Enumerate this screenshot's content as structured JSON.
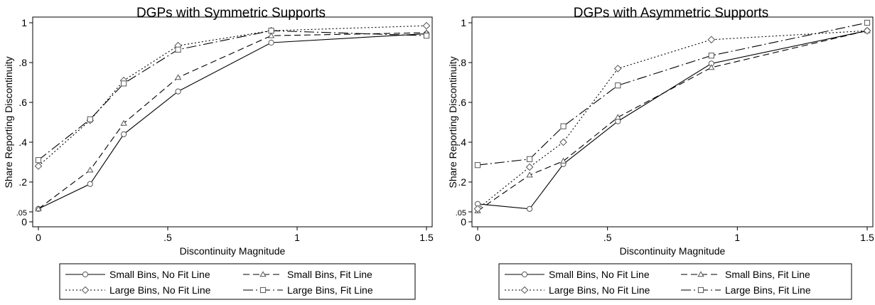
{
  "chart_data": [
    {
      "type": "line",
      "title": "DGPs with Symmetric Supports",
      "xlabel": "Discontinuity Magnitude",
      "ylabel": "Share Reporting Discontinuity",
      "xlim": [
        0,
        1.5
      ],
      "ylim": [
        0,
        1
      ],
      "xticks": [
        0,
        0.5,
        1,
        1.5
      ],
      "xtick_labels": [
        "0",
        ".5",
        "1",
        "1.5"
      ],
      "yticks": [
        0,
        0.05,
        0.2,
        0.4,
        0.6,
        0.8,
        1
      ],
      "ytick_labels": [
        "0",
        ".05",
        ".2",
        ".4",
        ".6",
        ".8",
        "1"
      ],
      "grid": false,
      "legend_position": "bottom",
      "x": [
        0,
        0.2,
        0.33,
        0.54,
        0.9,
        1.5
      ],
      "series": [
        {
          "name": "Small Bins, No Fit Line",
          "values": [
            0.065,
            0.19,
            0.44,
            0.655,
            0.9,
            0.945
          ],
          "marker": "circle",
          "dash": "solid"
        },
        {
          "name": "Small Bins, Fit Line",
          "values": [
            0.065,
            0.26,
            0.495,
            0.725,
            0.935,
            0.95
          ],
          "marker": "triangle",
          "dash": "dash"
        },
        {
          "name": "Large Bins, No Fit Line",
          "values": [
            0.28,
            0.51,
            0.71,
            0.885,
            0.96,
            0.985
          ],
          "marker": "diamond",
          "dash": "dot"
        },
        {
          "name": "Large Bins, Fit Line",
          "values": [
            0.31,
            0.515,
            0.695,
            0.865,
            0.96,
            0.935
          ],
          "marker": "square",
          "dash": "longdash-dot"
        }
      ]
    },
    {
      "type": "line",
      "title": "DGPs with Asymmetric Supports",
      "xlabel": "Discontinuity Magnitude",
      "ylabel": "Share Reporting Discontinuity",
      "xlim": [
        0,
        1.5
      ],
      "ylim": [
        0,
        1
      ],
      "xticks": [
        0,
        0.5,
        1,
        1.5
      ],
      "xtick_labels": [
        "0",
        ".5",
        "1",
        "1.5"
      ],
      "yticks": [
        0,
        0.05,
        0.2,
        0.4,
        0.6,
        0.8,
        1
      ],
      "ytick_labels": [
        "0",
        ".05",
        ".2",
        ".4",
        ".6",
        ".8",
        "1"
      ],
      "grid": false,
      "legend_position": "bottom",
      "x": [
        0,
        0.2,
        0.33,
        0.54,
        0.9,
        1.5
      ],
      "series": [
        {
          "name": "Small Bins, No Fit Line",
          "values": [
            0.09,
            0.065,
            0.29,
            0.505,
            0.795,
            0.96
          ],
          "marker": "circle",
          "dash": "solid"
        },
        {
          "name": "Small Bins, Fit Line",
          "values": [
            0.055,
            0.235,
            0.305,
            0.525,
            0.775,
            0.96
          ],
          "marker": "triangle",
          "dash": "dash"
        },
        {
          "name": "Large Bins, No Fit Line",
          "values": [
            0.065,
            0.275,
            0.4,
            0.77,
            0.915,
            0.96
          ],
          "marker": "diamond",
          "dash": "dot"
        },
        {
          "name": "Large Bins, Fit Line",
          "values": [
            0.285,
            0.315,
            0.48,
            0.685,
            0.835,
            1.0
          ],
          "marker": "square",
          "dash": "longdash-dot"
        }
      ]
    }
  ]
}
